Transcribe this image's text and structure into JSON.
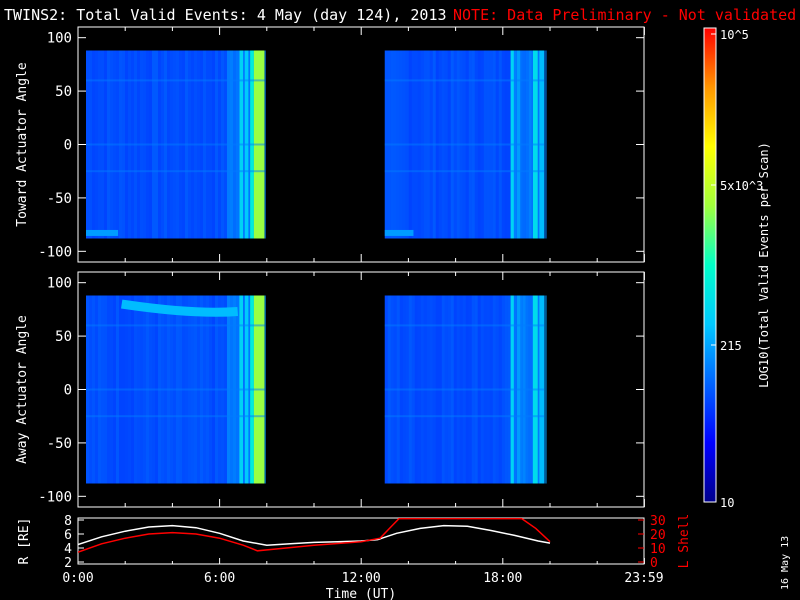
{
  "header": {
    "title": "TWINS2: Total Valid Events:  4 May (day 124), 2013",
    "note": "NOTE: Data Preliminary - Not validated",
    "note_color": "#ff0000"
  },
  "colorbar": {
    "label": "LOG10(Total Valid Events per Scan)",
    "ticks": [
      "10",
      "215",
      "5x10^3",
      "10^5"
    ],
    "colors": [
      "#00008c",
      "#0000ff",
      "#0064ff",
      "#00c8ff",
      "#00ffc8",
      "#a0ff3c",
      "#ffff00",
      "#ff9600",
      "#ff0000"
    ]
  },
  "date_stamp": "16 May 13",
  "chart_data": [
    {
      "type": "heatmap",
      "name": "toward",
      "ylabel": "Toward Actuator Angle",
      "ylim": [
        -110,
        110
      ],
      "yticks": [
        "100",
        "50",
        "0",
        "-50",
        "-100"
      ],
      "xlim": [
        0,
        23.983
      ],
      "data_intervals_hours": [
        [
          0,
          7.9
        ],
        [
          13.0,
          19.75
        ]
      ],
      "angle_range": [
        -88,
        88
      ],
      "bright_edge_hours": [
        [
          6.2,
          6.5
        ],
        [
          7.3,
          7.9
        ],
        [
          18.4,
          18.5
        ],
        [
          19.0,
          19.75
        ]
      ],
      "approx_log10_events": 2.2
    },
    {
      "type": "heatmap",
      "name": "away",
      "ylabel": "Away Actuator Angle",
      "ylim": [
        -110,
        110
      ],
      "yticks": [
        "100",
        "50",
        "0",
        "-50",
        "-100"
      ],
      "xlim": [
        0,
        23.983
      ],
      "data_intervals_hours": [
        [
          0,
          7.9
        ],
        [
          13.0,
          19.75
        ]
      ],
      "angle_range": [
        -88,
        88
      ],
      "bright_band_angle": 75,
      "approx_log10_events": 2.2
    },
    {
      "type": "line",
      "name": "orbit",
      "xlabel": "Time (UT)",
      "xticks": [
        "0:00",
        "6:00",
        "12:00",
        "18:00",
        "23:59"
      ],
      "xlim": [
        0,
        23.983
      ],
      "ylabel_left": "R [RE]",
      "yticks_left": [
        "8",
        "6",
        "4",
        "2"
      ],
      "ylim_left": [
        2,
        8
      ],
      "ylabel_right": "L Shell",
      "yticks_right": [
        "30",
        "20",
        "10",
        "0"
      ],
      "ylim_right": [
        0,
        30
      ],
      "series": [
        {
          "color": "#ffffff",
          "x": [
            0,
            1,
            2,
            3,
            4,
            5,
            6,
            7,
            8,
            9,
            10,
            11,
            12,
            12.7,
            13.5,
            14.5,
            15.5,
            16.5,
            17.5,
            18.5,
            19.5,
            20
          ],
          "y": [
            4.5,
            5.6,
            6.4,
            7.0,
            7.2,
            6.9,
            6.1,
            5.0,
            4.4,
            4.6,
            4.8,
            4.9,
            5.0,
            5.2,
            6.1,
            6.8,
            7.2,
            7.1,
            6.5,
            5.8,
            5.0,
            4.7
          ]
        },
        {
          "color": "#ff0000",
          "x": [
            0,
            1,
            2,
            3,
            4,
            5,
            6,
            7,
            7.6,
            8.5,
            10,
            12,
            12.8,
            13.2,
            13.6,
            18.8,
            19.4,
            20
          ],
          "y": [
            3.4,
            4.6,
            5.4,
            6.0,
            6.2,
            6.0,
            5.4,
            4.4,
            3.6,
            3.9,
            4.4,
            4.9,
            5.4,
            6.8,
            8.2,
            8.2,
            6.8,
            4.9
          ]
        }
      ]
    }
  ]
}
